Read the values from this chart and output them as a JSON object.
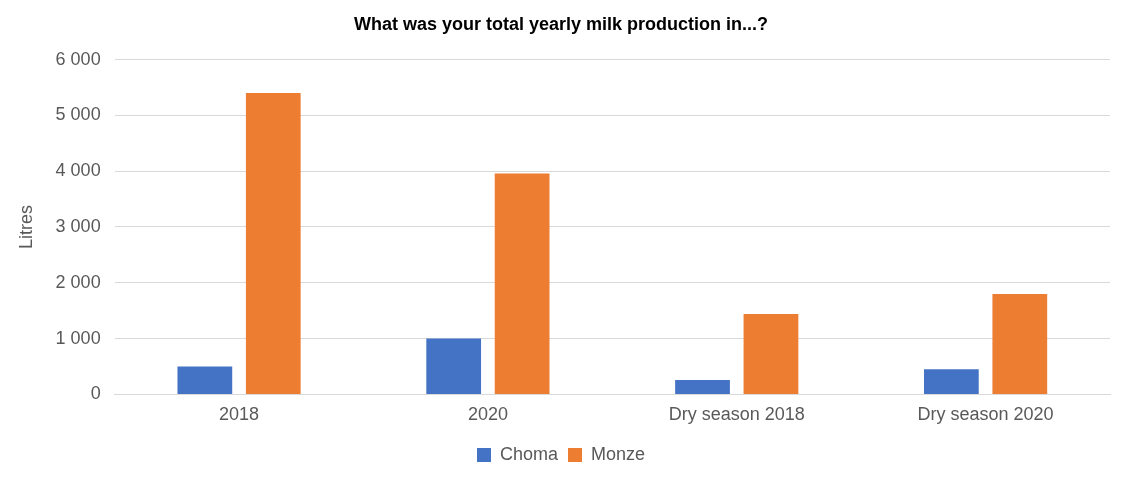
{
  "chart_data": {
    "type": "bar",
    "title": "What was your total yearly milk production in...?",
    "ylabel": "Litres",
    "categories": [
      "2018",
      "2020",
      "Dry season 2018",
      "Dry season 2020"
    ],
    "series": [
      {
        "name": "Choma",
        "color": "#4472c4",
        "values": [
          500,
          1000,
          260,
          450
        ]
      },
      {
        "name": "Monze",
        "color": "#ed7d31",
        "values": [
          5400,
          3960,
          1440,
          1800
        ]
      }
    ],
    "ylim": [
      0,
      6000
    ],
    "yticks": [
      0,
      {
        "value": 1000,
        "label": "1 000"
      },
      {
        "value": 2000,
        "label": "2 000"
      },
      {
        "value": 3000,
        "label": "3 000"
      },
      {
        "value": 4000,
        "label": "4 000"
      },
      {
        "value": 5000,
        "label": "5 000"
      },
      {
        "value": 6000,
        "label": "6 000"
      }
    ],
    "grid": "y",
    "legend": "bottom"
  }
}
